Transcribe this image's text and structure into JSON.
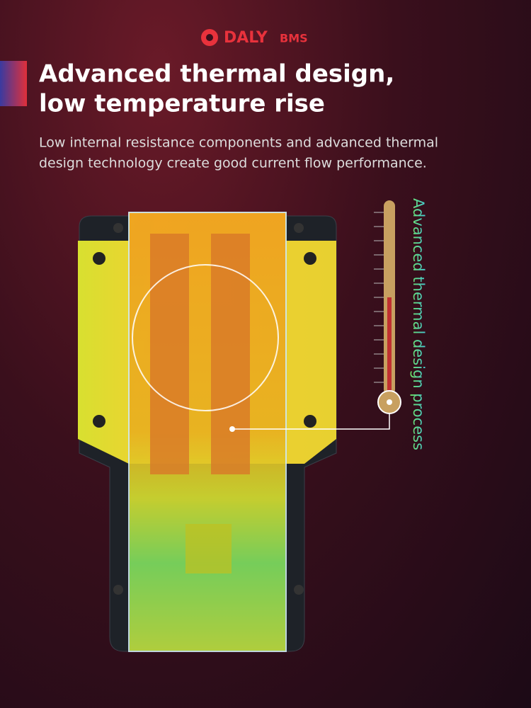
{
  "brand": {
    "name": "DALY",
    "suffix": "BMS"
  },
  "headline": {
    "lines": [
      "Advanced thermal design,",
      "low temperature rise"
    ]
  },
  "description": {
    "lines": [
      "Low internal resistance components and advanced thermal",
      "design technology create good current flow performance."
    ]
  },
  "side_label": "Advanced thermal design process"
}
